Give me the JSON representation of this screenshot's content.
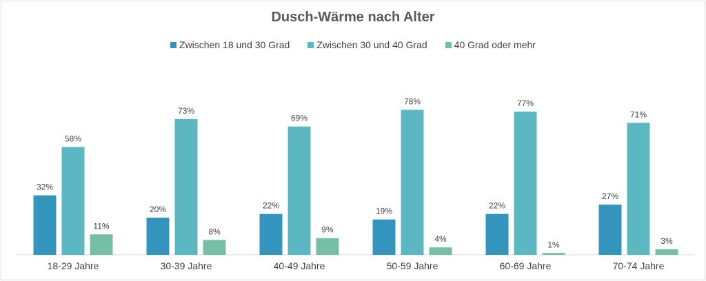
{
  "chart_data": {
    "type": "bar",
    "title": "Dusch-Wärme nach Alter",
    "categories": [
      "18-29 Jahre",
      "30-39 Jahre",
      "40-49 Jahre",
      "50-59 Jahre",
      "60-69 Jahre",
      "70-74 Jahre"
    ],
    "series": [
      {
        "name": "Zwischen 18 und 30 Grad",
        "color": "#3394be",
        "values": [
          32,
          20,
          22,
          19,
          22,
          27
        ]
      },
      {
        "name": "Zwischen 30 und 40 Grad",
        "color": "#5bb7c2",
        "values": [
          58,
          73,
          69,
          78,
          77,
          71
        ]
      },
      {
        "name": "40 Grad oder mehr",
        "color": "#76bfa7",
        "values": [
          11,
          8,
          9,
          4,
          1,
          3
        ]
      }
    ],
    "value_suffix": "%",
    "ylim": [
      0,
      100
    ],
    "legend_position": "top",
    "grid": false
  }
}
